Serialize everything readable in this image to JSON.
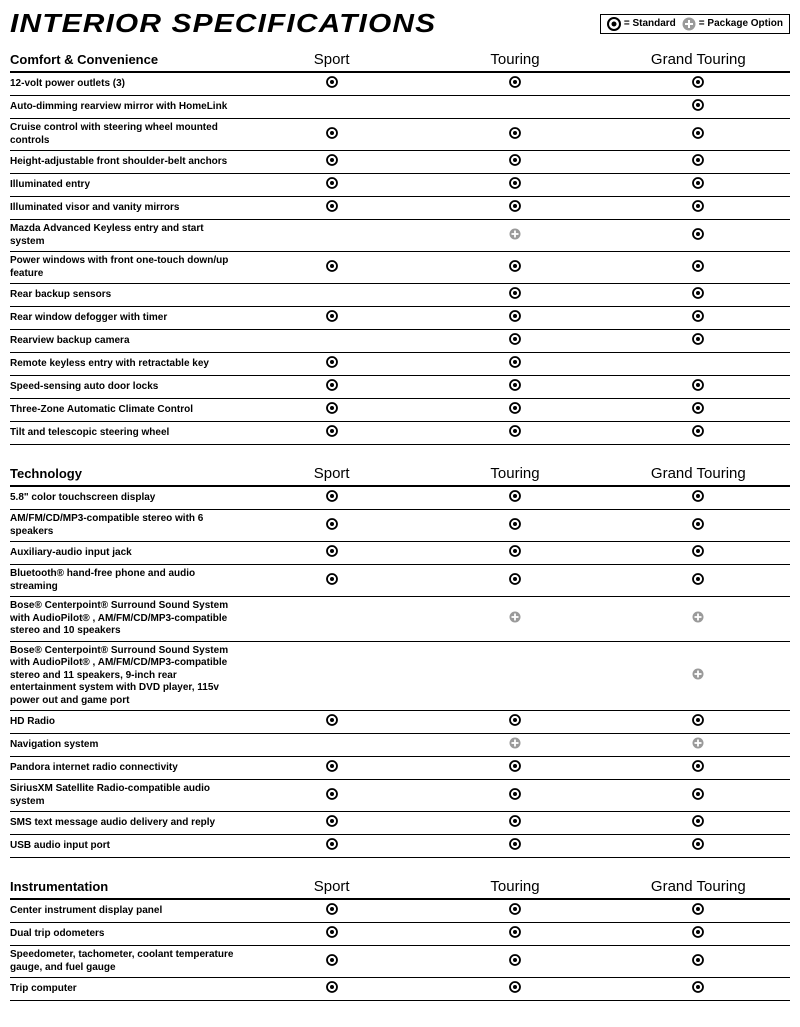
{
  "title": "INTERIOR SPECIFICATIONS",
  "legend": {
    "standard_label": "= Standard",
    "package_label": "= Package Option"
  },
  "columns": [
    "Sport",
    "Touring",
    "Grand Touring"
  ],
  "icon_types": {
    "S": "standard (black bullseye)",
    "P": "package (grey plus)"
  },
  "sections": [
    {
      "heading": "Comfort & Convenience",
      "rows": [
        {
          "label": "12-volt power outlets (3)",
          "vals": [
            "S",
            "S",
            "S"
          ]
        },
        {
          "label": "Auto-dimming rearview mirror with HomeLink",
          "vals": [
            "",
            "",
            "S"
          ]
        },
        {
          "label": "Cruise control with steering wheel mounted controls",
          "vals": [
            "S",
            "S",
            "S"
          ]
        },
        {
          "label": "Height-adjustable front shoulder-belt anchors",
          "vals": [
            "S",
            "S",
            "S"
          ]
        },
        {
          "label": "Illuminated entry",
          "vals": [
            "S",
            "S",
            "S"
          ]
        },
        {
          "label": "Illuminated visor and vanity mirrors",
          "vals": [
            "S",
            "S",
            "S"
          ]
        },
        {
          "label": "Mazda Advanced Keyless entry and start system",
          "vals": [
            "",
            "P",
            "S"
          ]
        },
        {
          "label": "Power windows with front one-touch down/up feature",
          "vals": [
            "S",
            "S",
            "S"
          ]
        },
        {
          "label": "Rear backup sensors",
          "vals": [
            "",
            "S",
            "S"
          ]
        },
        {
          "label": "Rear window defogger with timer",
          "vals": [
            "S",
            "S",
            "S"
          ]
        },
        {
          "label": "Rearview backup camera",
          "vals": [
            "",
            "S",
            "S"
          ]
        },
        {
          "label": "Remote keyless entry with retractable key",
          "vals": [
            "S",
            "S",
            ""
          ]
        },
        {
          "label": "Speed-sensing auto door locks",
          "vals": [
            "S",
            "S",
            "S"
          ]
        },
        {
          "label": "Three-Zone Automatic Climate Control",
          "vals": [
            "S",
            "S",
            "S"
          ]
        },
        {
          "label": "Tilt and telescopic steering wheel",
          "vals": [
            "S",
            "S",
            "S"
          ]
        }
      ]
    },
    {
      "heading": "Technology",
      "rows": [
        {
          "label": "5.8\" color touchscreen display",
          "vals": [
            "S",
            "S",
            "S"
          ]
        },
        {
          "label": "AM/FM/CD/MP3-compatible stereo with 6 speakers",
          "vals": [
            "S",
            "S",
            "S"
          ]
        },
        {
          "label": "Auxiliary-audio input jack",
          "vals": [
            "S",
            "S",
            "S"
          ]
        },
        {
          "label": "Bluetooth®  hand-free phone and audio streaming",
          "vals": [
            "S",
            "S",
            "S"
          ]
        },
        {
          "label": "Bose®  Centerpoint®  Surround Sound System with AudioPilot®  , AM/FM/CD/MP3-compatible stereo and 10 speakers",
          "vals": [
            "",
            "P",
            "P"
          ]
        },
        {
          "label": "Bose®  Centerpoint®  Surround Sound System with AudioPilot®  , AM/FM/CD/MP3-compatible stereo and 11 speakers, 9-inch rear entertainment system with DVD player, 115v power out and game port",
          "vals": [
            "",
            "",
            "P"
          ]
        },
        {
          "label": "HD Radio",
          "vals": [
            "S",
            "S",
            "S"
          ]
        },
        {
          "label": "Navigation system",
          "vals": [
            "",
            "P",
            "P"
          ]
        },
        {
          "label": "Pandora internet radio connectivity",
          "vals": [
            "S",
            "S",
            "S"
          ]
        },
        {
          "label": "SiriusXM Satellite Radio-compatible audio system",
          "vals": [
            "S",
            "S",
            "S"
          ]
        },
        {
          "label": "SMS text message audio delivery and reply",
          "vals": [
            "S",
            "S",
            "S"
          ]
        },
        {
          "label": "USB audio input port",
          "vals": [
            "S",
            "S",
            "S"
          ]
        }
      ]
    },
    {
      "heading": "Instrumentation",
      "rows": [
        {
          "label": "Center instrument display panel",
          "vals": [
            "S",
            "S",
            "S"
          ]
        },
        {
          "label": "Dual trip odometers",
          "vals": [
            "S",
            "S",
            "S"
          ]
        },
        {
          "label": "Speedometer, tachometer, coolant temperature gauge, and fuel gauge",
          "vals": [
            "S",
            "S",
            "S"
          ]
        },
        {
          "label": "Trip computer",
          "vals": [
            "S",
            "S",
            "S"
          ]
        }
      ]
    }
  ],
  "colors": {
    "standard_icon": "#000000",
    "package_icon": "#9a9a9a",
    "border": "#000000"
  }
}
